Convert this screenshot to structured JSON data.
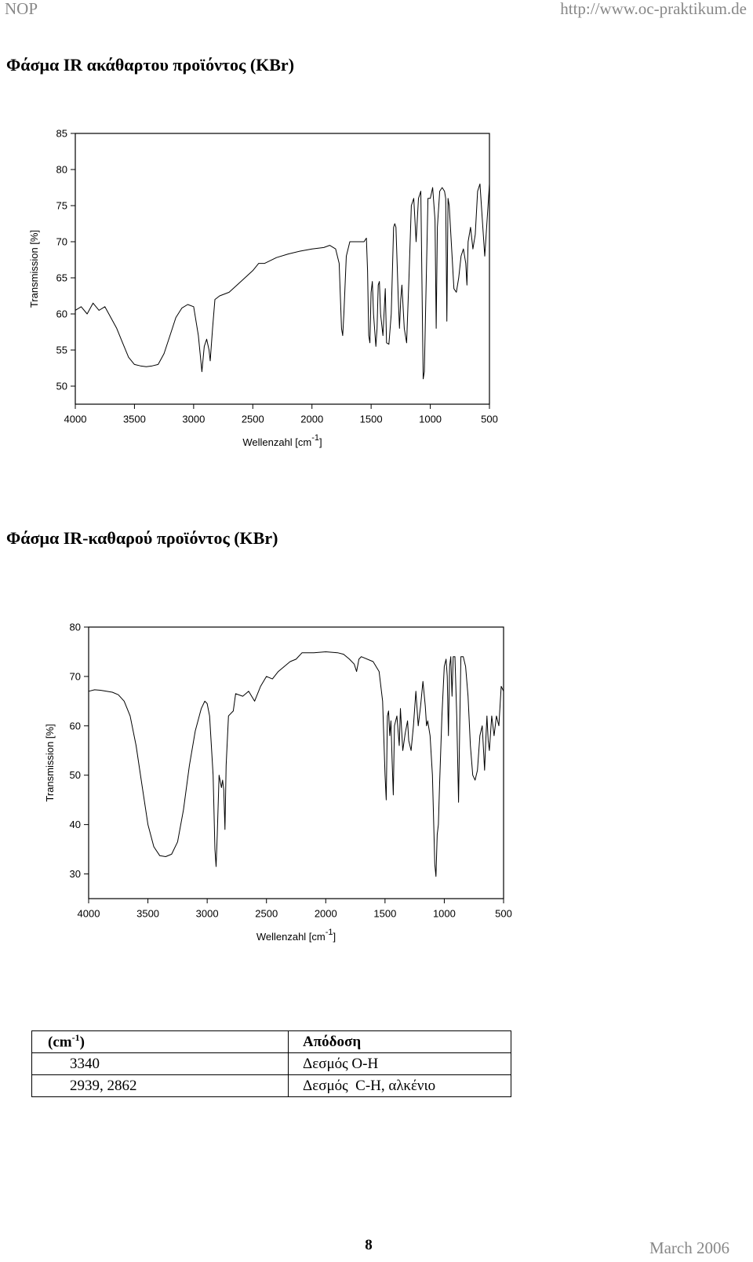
{
  "header": {
    "left": "NOP",
    "right": "http://www.oc-praktikum.de"
  },
  "headings": [
    "Φάσμα IR ακάθαρτου προϊόντος (KBr)",
    "Φάσμα IR-καθαρού προϊόντος (KBr)"
  ],
  "chart_data": [
    {
      "type": "line",
      "color": "#000000",
      "x_label": [
        "Wellenzahl [cm",
        "-1",
        "]"
      ],
      "y_label": "Transmission [%]",
      "xlim": [
        4000,
        500
      ],
      "ylim": [
        47.5,
        85
      ],
      "xticks": [
        4000,
        3500,
        3000,
        2500,
        2000,
        1500,
        1000,
        500
      ],
      "yticks": [
        50,
        55,
        60,
        65,
        70,
        75,
        80,
        85
      ],
      "x": [
        4000,
        3950,
        3900,
        3850,
        3800,
        3750,
        3700,
        3650,
        3600,
        3550,
        3500,
        3450,
        3400,
        3350,
        3300,
        3250,
        3200,
        3150,
        3100,
        3050,
        3000,
        2960,
        2930,
        2910,
        2890,
        2870,
        2860,
        2840,
        2820,
        2780,
        2700,
        2600,
        2500,
        2450,
        2400,
        2300,
        2200,
        2100,
        2000,
        1900,
        1850,
        1800,
        1770,
        1750,
        1740,
        1730,
        1710,
        1680,
        1600,
        1560,
        1540,
        1530,
        1520,
        1510,
        1500,
        1490,
        1480,
        1460,
        1450,
        1440,
        1430,
        1420,
        1400,
        1380,
        1370,
        1350,
        1330,
        1310,
        1300,
        1290,
        1270,
        1260,
        1250,
        1240,
        1220,
        1200,
        1180,
        1160,
        1140,
        1120,
        1100,
        1080,
        1060,
        1050,
        1040,
        1020,
        1000,
        980,
        960,
        950,
        940,
        920,
        900,
        880,
        870,
        860,
        850,
        840,
        800,
        780,
        760,
        740,
        720,
        700,
        690,
        680,
        660,
        640,
        620,
        600,
        580,
        540,
        520,
        500
      ],
      "values": [
        60.5,
        61,
        60,
        61.5,
        60.5,
        61,
        59.5,
        58,
        56,
        54,
        53,
        52.8,
        52.7,
        52.8,
        53,
        54.5,
        57,
        59.5,
        60.8,
        61.3,
        61,
        57,
        52,
        55.5,
        56.5,
        55,
        53.5,
        58,
        62,
        62.5,
        63,
        64.5,
        66,
        67,
        67,
        67.8,
        68.3,
        68.7,
        69,
        69.2,
        69.5,
        69,
        67,
        58,
        57,
        60,
        68,
        70,
        70,
        70,
        70.5,
        66,
        57,
        56,
        63,
        64.5,
        60,
        55.5,
        58,
        64,
        64.5,
        60,
        57,
        63.5,
        56,
        55.8,
        60,
        72,
        72.5,
        72,
        62,
        58,
        62,
        64,
        58,
        56,
        65,
        75,
        76,
        70,
        76,
        77,
        51,
        52,
        60,
        76,
        76,
        77.5,
        73,
        58,
        72,
        77,
        77.5,
        77,
        76,
        59,
        76,
        75,
        63.5,
        63,
        65,
        68,
        69,
        67,
        64,
        70,
        72,
        69,
        71,
        77,
        78,
        68,
        73,
        78
      ]
    },
    {
      "type": "line",
      "color": "#000000",
      "x_label": [
        "Wellenzahl [cm",
        "-1",
        "]"
      ],
      "y_label": "Transmission [%]",
      "xlim": [
        4000,
        500
      ],
      "ylim": [
        25,
        80
      ],
      "xticks": [
        4000,
        3500,
        3000,
        2500,
        2000,
        1500,
        1000,
        500
      ],
      "yticks": [
        30,
        40,
        50,
        60,
        70,
        80
      ],
      "x": [
        4000,
        3950,
        3900,
        3850,
        3800,
        3750,
        3700,
        3650,
        3600,
        3550,
        3500,
        3450,
        3400,
        3350,
        3300,
        3250,
        3200,
        3150,
        3100,
        3050,
        3020,
        3000,
        2980,
        2950,
        2935,
        2925,
        2915,
        2900,
        2880,
        2870,
        2860,
        2850,
        2840,
        2820,
        2780,
        2760,
        2700,
        2650,
        2600,
        2550,
        2500,
        2450,
        2400,
        2350,
        2300,
        2250,
        2200,
        2100,
        2000,
        1900,
        1850,
        1800,
        1760,
        1740,
        1720,
        1700,
        1600,
        1550,
        1520,
        1500,
        1490,
        1480,
        1470,
        1460,
        1450,
        1440,
        1430,
        1420,
        1400,
        1380,
        1370,
        1350,
        1330,
        1310,
        1300,
        1280,
        1260,
        1240,
        1220,
        1200,
        1180,
        1160,
        1150,
        1140,
        1120,
        1100,
        1080,
        1070,
        1060,
        1050,
        1040,
        1020,
        1000,
        985,
        975,
        965,
        955,
        945,
        935,
        925,
        910,
        895,
        880,
        870,
        860,
        840,
        820,
        800,
        780,
        760,
        740,
        720,
        700,
        680,
        660,
        650,
        640,
        630,
        620,
        600,
        580,
        560,
        540,
        520,
        500
      ],
      "values": [
        67,
        67.3,
        67.2,
        67,
        66.8,
        66.3,
        65,
        62,
        56,
        48,
        40,
        35.5,
        33.7,
        33.5,
        34,
        36.5,
        43,
        52,
        59,
        63.5,
        65,
        64.5,
        62,
        50,
        35,
        31.5,
        38,
        50,
        47.5,
        49,
        47,
        39,
        52,
        62,
        63,
        66.5,
        66,
        67,
        65,
        68,
        70,
        69.5,
        71,
        72,
        73,
        73.5,
        74.8,
        74.8,
        75,
        74.8,
        74.5,
        73.5,
        72.5,
        71,
        73.5,
        74,
        73,
        71,
        65,
        50,
        45,
        62,
        63,
        58,
        61,
        53,
        46,
        60,
        62,
        56,
        63.5,
        55,
        58.5,
        61,
        57,
        55,
        60,
        67,
        60,
        64,
        69,
        64,
        60,
        61,
        58,
        50,
        32,
        29.5,
        38,
        40,
        48,
        62,
        72,
        73.5,
        70,
        58,
        72,
        74,
        66,
        74,
        74,
        62,
        44.5,
        60,
        74,
        74,
        72,
        66,
        56,
        50,
        49,
        51,
        58,
        60,
        51,
        57,
        62,
        57,
        55,
        62,
        58,
        62,
        60,
        68,
        67
      ]
    }
  ],
  "table": {
    "header": [
      [
        "(cm",
        "-1",
        ")"
      ],
      "Απόδοση"
    ],
    "rows": [
      [
        "3340",
        "Δεσμός O-H"
      ],
      [
        "2939, 2862",
        "Δεσμός  C-H, αλκένιο"
      ]
    ]
  },
  "footer": {
    "page": "8",
    "date": "March 2006"
  }
}
